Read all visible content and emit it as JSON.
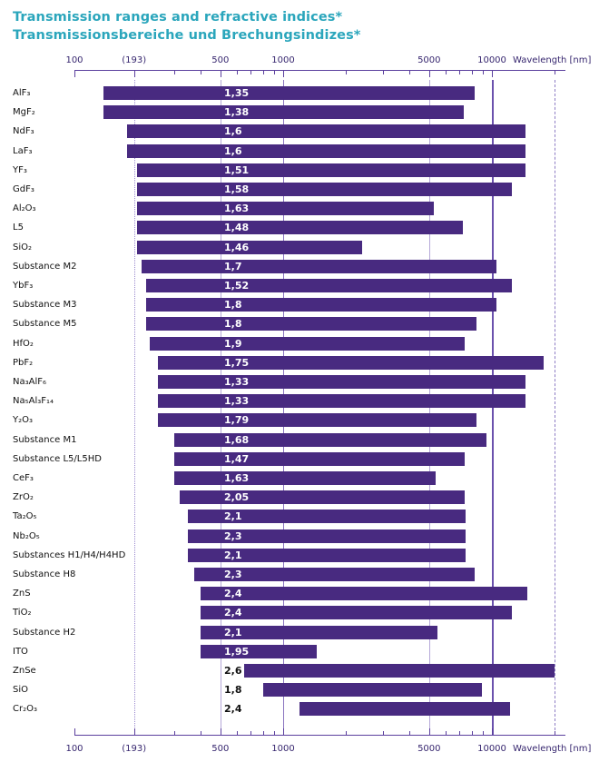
{
  "title": {
    "line1": "Transmission ranges and refractive indices*",
    "line2": "Transmissionsbereiche und Brechungsindizes*"
  },
  "colors": {
    "bar": "#482a80",
    "title": "#2ba6bc",
    "axis_line": "#5b3f9e",
    "axis_text": "#37276f",
    "material_text": "#111111",
    "index_inside": "#ffffff",
    "index_outside": "#111111",
    "grid_light": "#b4a7d8",
    "grid_medium": "#8a74c0",
    "grid_strong": "#6b51ad",
    "grid_dotted": "#9a8ace",
    "grid_dashed": "#8d7cc4"
  },
  "chart_data": {
    "type": "bar",
    "orientation": "horizontal",
    "x_scale": "log",
    "x_axis_label": "Wavelength [nm]",
    "x_range_nm": [
      100,
      22500
    ],
    "labeled_ticks": [
      {
        "label": "100",
        "nm": 100
      },
      {
        "label": "(193)",
        "nm": 193
      },
      {
        "label": "500",
        "nm": 500
      },
      {
        "label": "1000",
        "nm": 1000
      },
      {
        "label": "5000",
        "nm": 5000
      },
      {
        "label": "10000",
        "nm": 10000
      }
    ],
    "minor_ticks_nm": [
      300,
      400,
      600,
      700,
      800,
      900,
      2000,
      3000,
      4000,
      6000,
      7000,
      8000,
      9000,
      20000
    ],
    "gridlines": [
      {
        "nm": 193,
        "style": "dotted"
      },
      {
        "nm": 500,
        "style": "light"
      },
      {
        "nm": 1000,
        "style": "medium"
      },
      {
        "nm": 5000,
        "style": "light"
      },
      {
        "nm": 10000,
        "style": "strong"
      },
      {
        "nm": 20000,
        "style": "dashed"
      }
    ],
    "rows": [
      {
        "material": "AlF₃",
        "refractive_index": "1,35",
        "range_nm": [
          138,
          8300
        ]
      },
      {
        "material": "MgF₂",
        "refractive_index": "1,38",
        "range_nm": [
          138,
          7300
        ]
      },
      {
        "material": "NdF₃",
        "refractive_index": "1,6",
        "range_nm": [
          178,
          14500
        ]
      },
      {
        "material": "LaF₃",
        "refractive_index": "1,6",
        "range_nm": [
          178,
          14500
        ]
      },
      {
        "material": "YF₃",
        "refractive_index": "1,51",
        "range_nm": [
          200,
          14500
        ]
      },
      {
        "material": "GdF₃",
        "refractive_index": "1,58",
        "range_nm": [
          200,
          12500
        ]
      },
      {
        "material": "Al₂O₃",
        "refractive_index": "1,63",
        "range_nm": [
          200,
          5300
        ]
      },
      {
        "material": "L5",
        "refractive_index": "1,48",
        "range_nm": [
          200,
          7300
        ]
      },
      {
        "material": "SiO₂",
        "refractive_index": "1,46",
        "range_nm": [
          200,
          2400
        ]
      },
      {
        "material": "Substance M2",
        "refractive_index": "1,7",
        "range_nm": [
          210,
          10500
        ]
      },
      {
        "material": "YbF₃",
        "refractive_index": "1,52",
        "range_nm": [
          220,
          12500
        ]
      },
      {
        "material": "Substance M3",
        "refractive_index": "1,8",
        "range_nm": [
          220,
          10500
        ]
      },
      {
        "material": "Substance M5",
        "refractive_index": "1,8",
        "range_nm": [
          220,
          8400
        ]
      },
      {
        "material": "HfO₂",
        "refractive_index": "1,9",
        "range_nm": [
          230,
          7400
        ]
      },
      {
        "material": "PbF₂",
        "refractive_index": "1,75",
        "range_nm": [
          250,
          17700
        ]
      },
      {
        "material": "Na₃AlF₆",
        "refractive_index": "1,33",
        "range_nm": [
          250,
          14500
        ]
      },
      {
        "material": "Na₅Al₃F₁₄",
        "refractive_index": "1,33",
        "range_nm": [
          250,
          14500
        ]
      },
      {
        "material": "Y₂O₃",
        "refractive_index": "1,79",
        "range_nm": [
          250,
          8400
        ]
      },
      {
        "material": "Substance M1",
        "refractive_index": "1,68",
        "range_nm": [
          300,
          9400
        ]
      },
      {
        "material": "Substance L5/L5HD",
        "refractive_index": "1,47",
        "range_nm": [
          300,
          7400
        ]
      },
      {
        "material": "CeF₃",
        "refractive_index": "1,63",
        "range_nm": [
          300,
          5400
        ]
      },
      {
        "material": "ZrO₂",
        "refractive_index": "2,05",
        "range_nm": [
          320,
          7400
        ]
      },
      {
        "material": "Ta₂O₅",
        "refractive_index": "2,1",
        "range_nm": [
          350,
          7500
        ]
      },
      {
        "material": "Nb₂O₅",
        "refractive_index": "2,3",
        "range_nm": [
          350,
          7500
        ]
      },
      {
        "material": "Substances H1/H4/H4HD",
        "refractive_index": "2,1",
        "range_nm": [
          350,
          7500
        ]
      },
      {
        "material": "Substance H8",
        "refractive_index": "2,3",
        "range_nm": [
          375,
          8300
        ]
      },
      {
        "material": "ZnS",
        "refractive_index": "2,4",
        "range_nm": [
          400,
          14800
        ]
      },
      {
        "material": "TiO₂",
        "refractive_index": "2,4",
        "range_nm": [
          400,
          12500
        ]
      },
      {
        "material": "Substance H2",
        "refractive_index": "2,1",
        "range_nm": [
          400,
          5500
        ]
      },
      {
        "material": "ITO",
        "refractive_index": "1,95",
        "range_nm": [
          400,
          1450
        ]
      },
      {
        "material": "ZnSe",
        "refractive_index": "2,6",
        "range_nm": [
          650,
          20000
        ]
      },
      {
        "material": "SiO",
        "refractive_index": "1,8",
        "range_nm": [
          800,
          9000
        ]
      },
      {
        "material": "Cr₂O₃",
        "refractive_index": "2,4",
        "range_nm": [
          1200,
          12200
        ]
      }
    ]
  }
}
